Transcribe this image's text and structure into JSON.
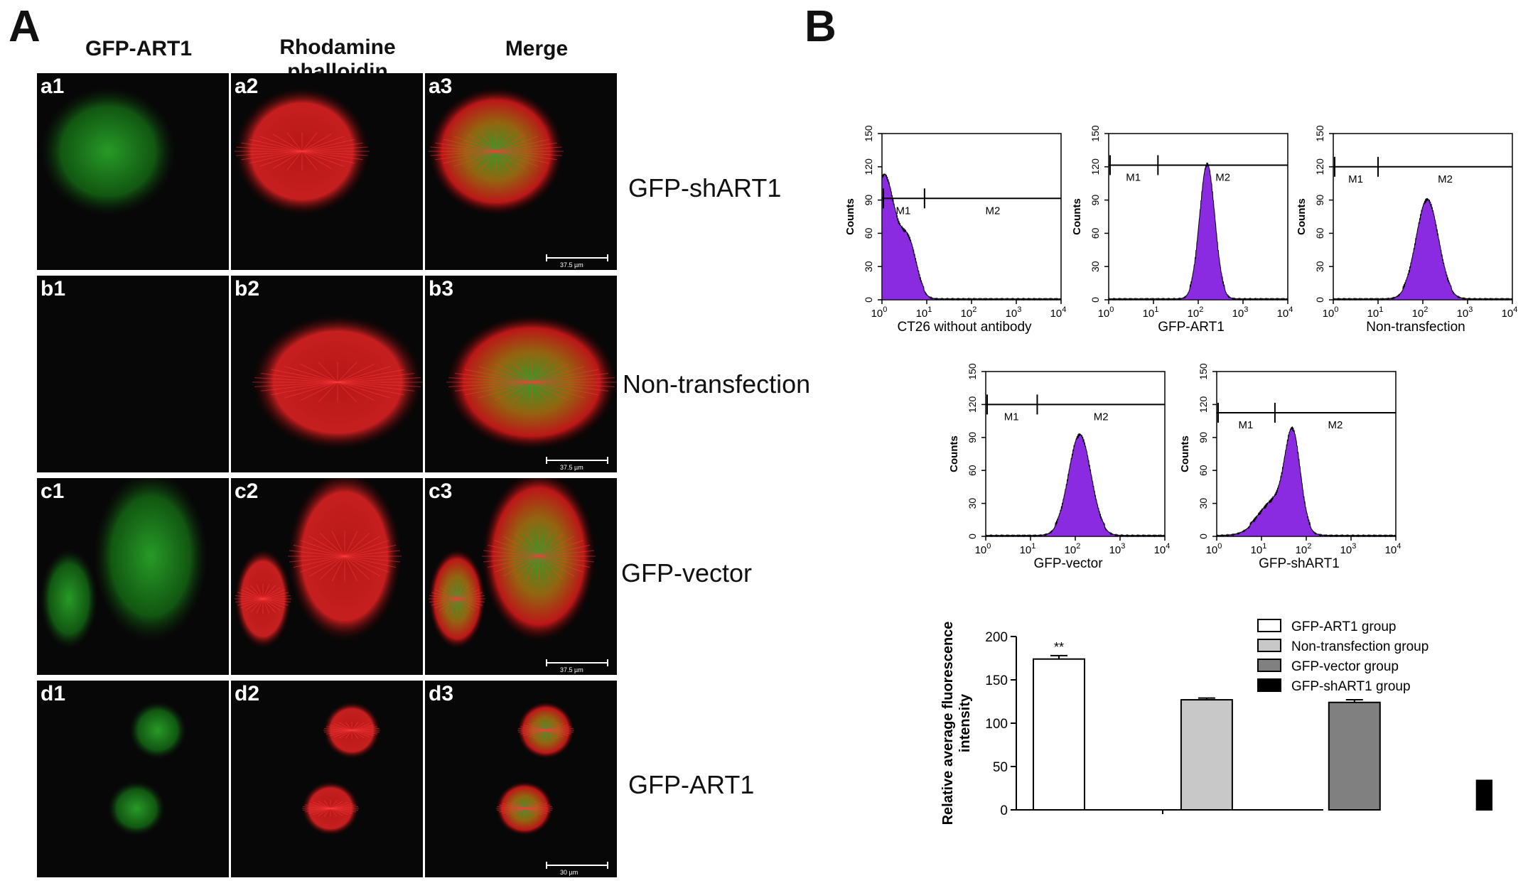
{
  "panel_a": {
    "letter": "A",
    "column_headers": [
      "GFP-ART1",
      "Rhodamine phalloidin",
      "Merge"
    ],
    "row_labels": [
      "GFP-shART1",
      "Non-transfection",
      "GFP-vector",
      "GFP-ART1"
    ],
    "tile_labels": [
      [
        "a1",
        "a2",
        "a3"
      ],
      [
        "b1",
        "b2",
        "b3"
      ],
      [
        "c1",
        "c2",
        "c3"
      ],
      [
        "d1",
        "d2",
        "d3"
      ]
    ],
    "scale_bars": [
      "37.5 µm",
      "37.5 µm",
      "37.5 µm",
      "30 µm"
    ]
  },
  "panel_b": {
    "letter": "B",
    "histogram_color": "#8a2be2",
    "histograms": [
      {
        "label": "CT26 without antibody",
        "gates": [
          "M1",
          "M2"
        ],
        "ylabel": "Counts",
        "y_ticks": [
          "0",
          "30",
          "60",
          "90",
          "120",
          "150"
        ],
        "x_ticks": [
          "10^0",
          "10^1",
          "10^2",
          "10^3",
          "10^4"
        ]
      },
      {
        "label": "GFP-ART1",
        "gates": [
          "M1",
          "M2"
        ],
        "ylabel": "Counts",
        "y_ticks": [
          "0",
          "30",
          "60",
          "90",
          "120",
          "150"
        ],
        "x_ticks": [
          "10^0",
          "10^1",
          "10^2",
          "10^3",
          "10^4"
        ]
      },
      {
        "label": "Non-transfection",
        "gates": [
          "M1",
          "M2"
        ],
        "ylabel": "Counts",
        "y_ticks": [
          "0",
          "30",
          "60",
          "90",
          "120",
          "150"
        ],
        "x_ticks": [
          "10^0",
          "10^1",
          "10^2",
          "10^3",
          "10^4"
        ]
      },
      {
        "label": "GFP-vector",
        "gates": [
          "M1",
          "M2"
        ],
        "ylabel": "Counts",
        "y_ticks": [
          "0",
          "30",
          "60",
          "90",
          "120",
          "150"
        ],
        "x_ticks": [
          "10^0",
          "10^1",
          "10^2",
          "10^3",
          "10^4"
        ]
      },
      {
        "label": "GFP-shART1",
        "gates": [
          "M1",
          "M2"
        ],
        "ylabel": "Counts",
        "y_ticks": [
          "0",
          "30",
          "60",
          "90",
          "120",
          "150"
        ],
        "x_ticks": [
          "10^0",
          "10^1",
          "10^2",
          "10^3",
          "10^4"
        ]
      }
    ]
  },
  "chart_data": {
    "type": "bar",
    "categories": [
      "GFP-ART1 group",
      "Non-transfection group",
      "GFP-vector group",
      "GFP-shART1 group"
    ],
    "values": [
      174,
      127,
      124,
      34
    ],
    "errors": [
      4,
      2,
      3,
      1
    ],
    "significance": [
      "**",
      "",
      "",
      "**"
    ],
    "colors": [
      "#ffffff",
      "#c8c8c8",
      "#808080",
      "#000000"
    ],
    "ylabel": "Relative average fluorescence intensity",
    "ylim": [
      0,
      200
    ],
    "y_ticks": [
      0,
      50,
      100,
      150,
      200
    ],
    "legend": [
      "GFP-ART1 group",
      "Non-transfection group",
      "GFP-vector group",
      "GFP-shART1 group"
    ],
    "legend_placement": "top-right"
  }
}
